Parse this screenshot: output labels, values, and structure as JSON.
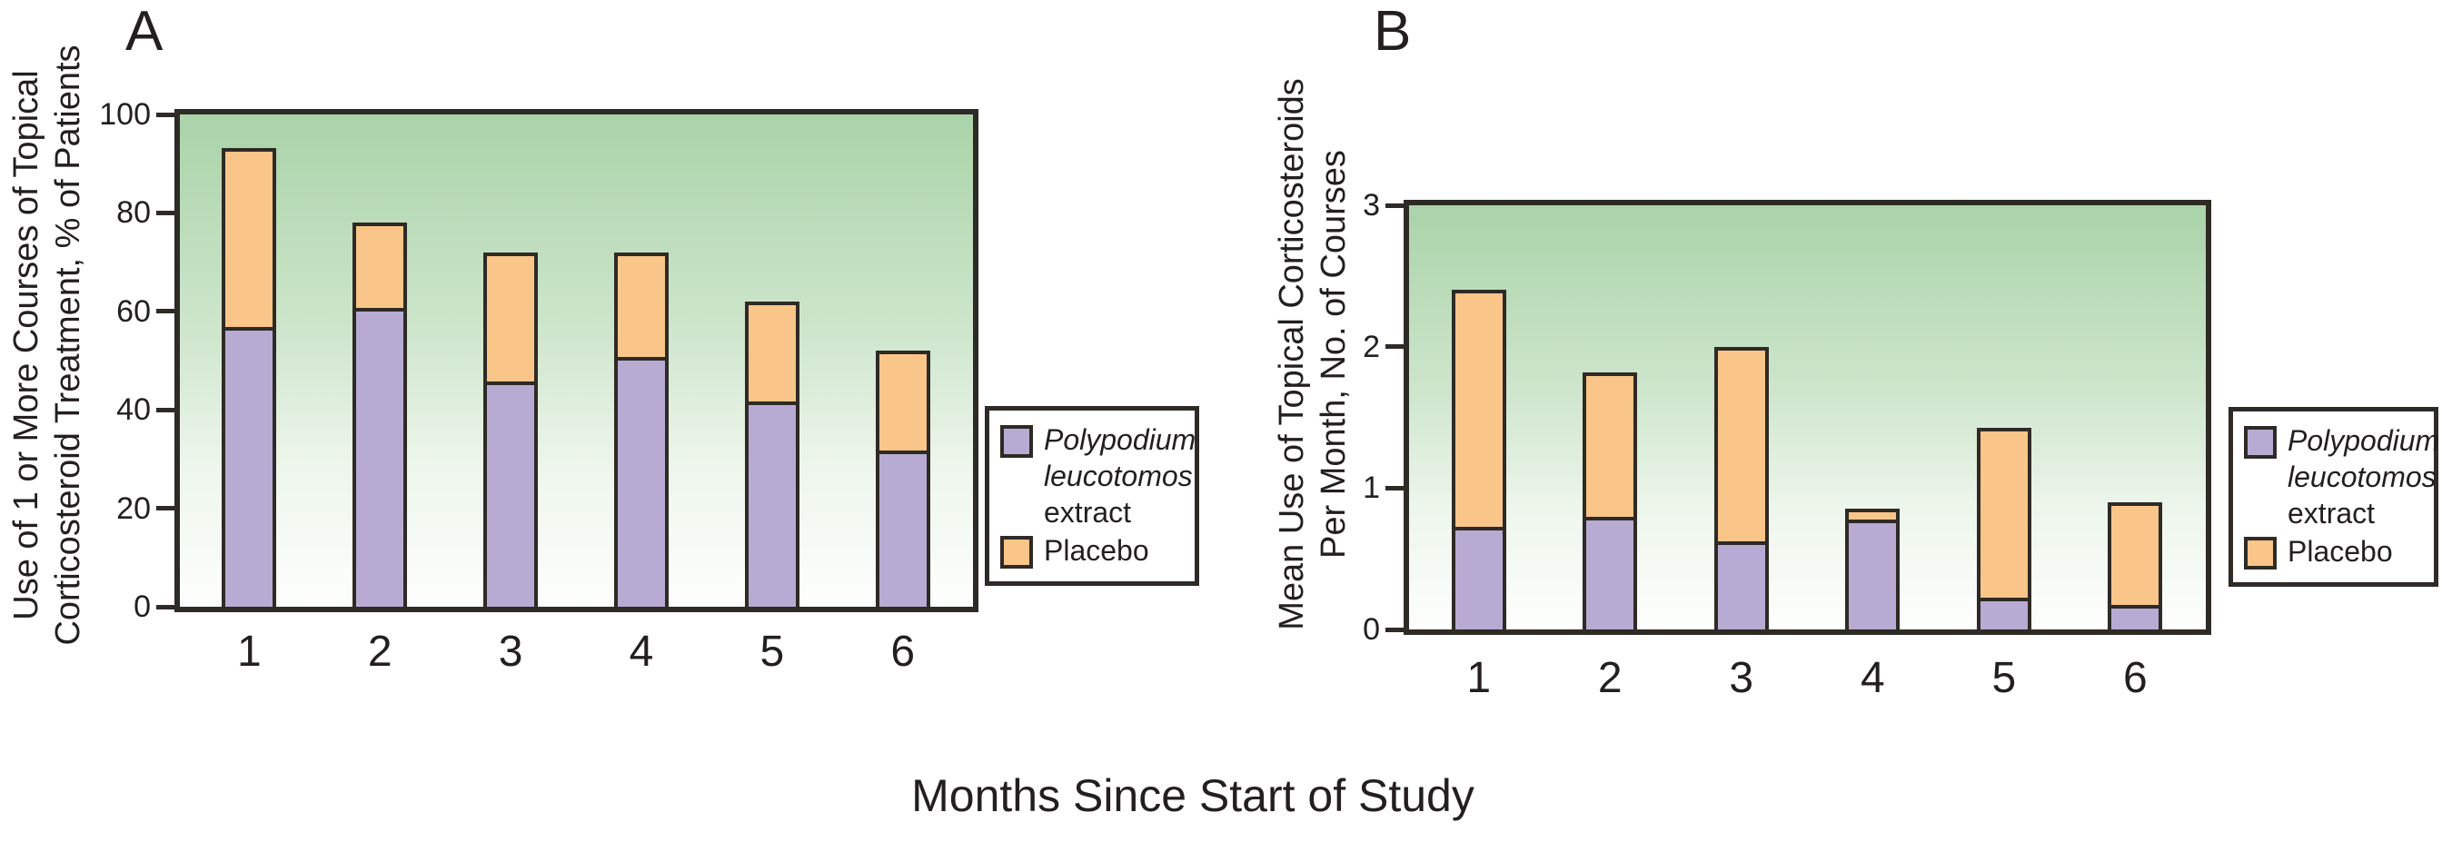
{
  "figure": {
    "panels": [
      {
        "letter": "A",
        "y_axis_label": [
          "Use of 1 or More Courses of Topical",
          "Corticosteroid Treatment, % of Patients"
        ]
      },
      {
        "letter": "B",
        "y_axis_label": [
          "Mean Use of Topical Corticosteroids",
          "Per Month, No. of Courses"
        ]
      }
    ],
    "x_axis_title": "Months Since Start of Study"
  },
  "legend": {
    "extract_label_line1": "Polypodium",
    "extract_label_line2": "leucotomos",
    "extract_label_line3": "extract",
    "placebo_label": "Placebo"
  },
  "colors": {
    "extract_fill": "#b8abd3",
    "placebo_fill": "#f9c588",
    "line": "#2e2a25",
    "plot_bg_top": "#a9d3a8",
    "plot_bg_bottom": "#fdfefd"
  },
  "chart_data": [
    {
      "type": "bar",
      "stacked": true,
      "panel": "A",
      "categories": [
        "1",
        "2",
        "3",
        "4",
        "5",
        "6"
      ],
      "series": [
        {
          "name": "Polypodium leucotomos extract",
          "values": [
            56,
            60,
            45,
            50,
            41,
            31
          ]
        },
        {
          "name": "Placebo",
          "values": [
            37,
            18,
            27,
            22,
            21,
            21
          ]
        }
      ],
      "stacked_totals": [
        93,
        78,
        72,
        72,
        62,
        52
      ],
      "xlabel": "Months Since Start of Study",
      "ylabel": "Use of 1 or More Courses of Topical Corticosteroid Treatment, % of Patients",
      "ylim": [
        0,
        100
      ],
      "yticks": [
        0,
        20,
        40,
        60,
        80,
        100
      ],
      "legend_position": "right",
      "grid": false
    },
    {
      "type": "bar",
      "stacked": true,
      "panel": "B",
      "categories": [
        "1",
        "2",
        "3",
        "4",
        "5",
        "6"
      ],
      "series": [
        {
          "name": "Polypodium leucotomos extract",
          "values": [
            0.7,
            0.77,
            0.6,
            0.75,
            0.2,
            0.15
          ]
        },
        {
          "name": "Placebo",
          "values": [
            1.7,
            1.05,
            1.4,
            0.1,
            1.23,
            0.75
          ]
        }
      ],
      "stacked_totals": [
        2.4,
        1.82,
        2.0,
        0.85,
        1.43,
        0.9
      ],
      "xlabel": "Months Since Start of Study",
      "ylabel": "Mean Use of Topical Corticosteroids Per Month, No. of Courses",
      "ylim": [
        0,
        3
      ],
      "yticks": [
        0,
        1,
        2,
        3
      ],
      "legend_position": "right",
      "grid": false
    }
  ]
}
